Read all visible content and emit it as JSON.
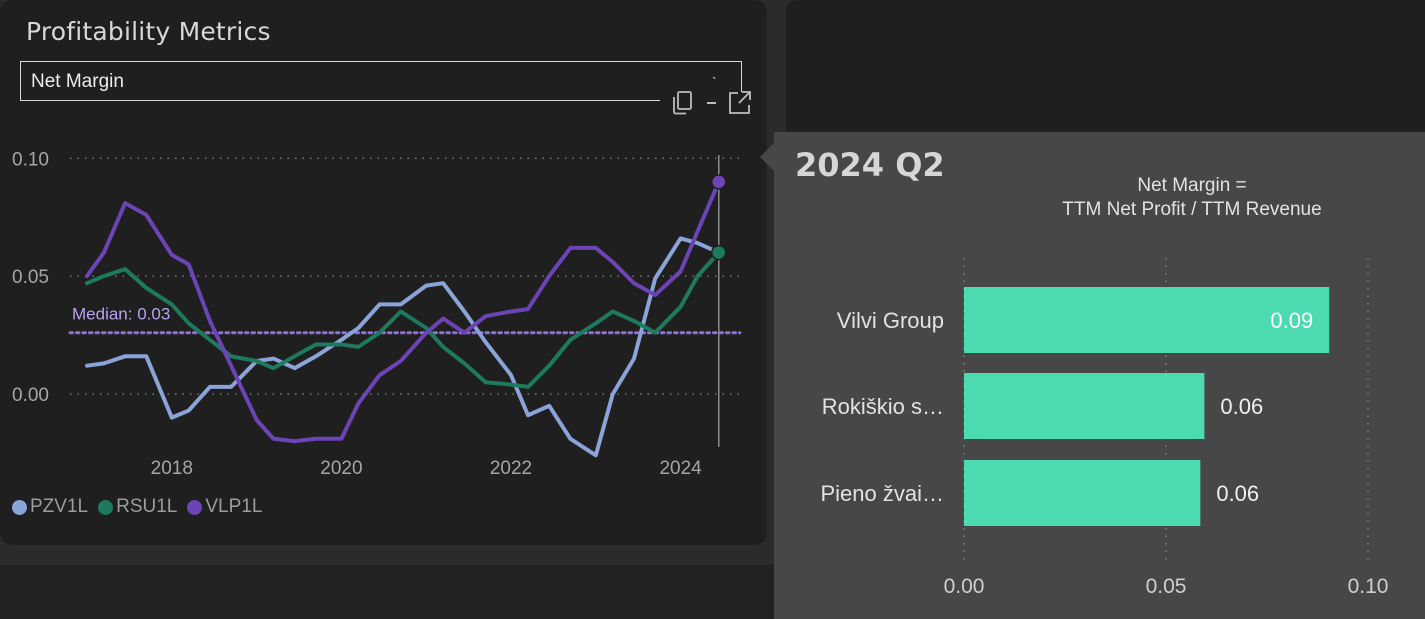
{
  "panel": {
    "title": "Profitability Metrics",
    "select_value": "Net Margin",
    "copy_icon": "copy-icon",
    "expand_icon": "expand-icon"
  },
  "chart_data": [
    {
      "type": "line",
      "title": "Net Margin",
      "x_ticks": [
        "2018",
        "2020",
        "2022",
        "2024"
      ],
      "y_ticks": [
        "0.00",
        "0.05",
        "0.10"
      ],
      "ylim": [
        -0.028,
        0.112
      ],
      "xlim": [
        2016.8,
        2024.7
      ],
      "grid": true,
      "legend_position": "bottom-left",
      "median": {
        "label": "Median: 0.03",
        "value": 0.026
      },
      "series": [
        {
          "name": "PZV1L",
          "color": "#8aa4d8",
          "x": [
            2017.0,
            2017.2,
            2017.45,
            2017.7,
            2018.0,
            2018.2,
            2018.45,
            2018.7,
            2019.0,
            2019.2,
            2019.45,
            2019.7,
            2020.0,
            2020.2,
            2020.45,
            2020.7,
            2021.0,
            2021.2,
            2021.45,
            2021.7,
            2022.0,
            2022.2,
            2022.45,
            2022.7,
            2023.0,
            2023.2,
            2023.45,
            2023.7,
            2024.0,
            2024.2,
            2024.45
          ],
          "y": [
            0.012,
            0.013,
            0.016,
            0.016,
            -0.01,
            -0.007,
            0.003,
            0.003,
            0.014,
            0.015,
            0.011,
            0.016,
            0.023,
            0.028,
            0.038,
            0.038,
            0.046,
            0.047,
            0.035,
            0.022,
            0.008,
            -0.009,
            -0.005,
            -0.019,
            -0.026,
            0.0,
            0.015,
            0.049,
            0.066,
            0.064,
            0.06
          ]
        },
        {
          "name": "RSU1L",
          "color": "#1e7a5e",
          "x": [
            2017.0,
            2017.2,
            2017.45,
            2017.7,
            2018.0,
            2018.2,
            2018.45,
            2018.7,
            2019.0,
            2019.2,
            2019.45,
            2019.7,
            2020.0,
            2020.2,
            2020.45,
            2020.7,
            2021.0,
            2021.2,
            2021.45,
            2021.7,
            2022.0,
            2022.2,
            2022.45,
            2022.7,
            2023.0,
            2023.2,
            2023.45,
            2023.7,
            2024.0,
            2024.2,
            2024.45
          ],
          "y": [
            0.047,
            0.05,
            0.053,
            0.045,
            0.038,
            0.03,
            0.023,
            0.016,
            0.014,
            0.011,
            0.016,
            0.021,
            0.021,
            0.02,
            0.026,
            0.035,
            0.028,
            0.02,
            0.013,
            0.005,
            0.004,
            0.003,
            0.012,
            0.023,
            0.03,
            0.035,
            0.031,
            0.026,
            0.037,
            0.05,
            0.06
          ]
        },
        {
          "name": "VLP1L",
          "color": "#6d44b6",
          "x": [
            2017.0,
            2017.2,
            2017.45,
            2017.7,
            2018.0,
            2018.2,
            2018.45,
            2018.7,
            2019.0,
            2019.2,
            2019.45,
            2019.7,
            2020.0,
            2020.2,
            2020.45,
            2020.7,
            2021.0,
            2021.2,
            2021.45,
            2021.7,
            2022.0,
            2022.2,
            2022.45,
            2022.7,
            2023.0,
            2023.2,
            2023.45,
            2023.7,
            2024.0,
            2024.2,
            2024.45
          ],
          "y": [
            0.05,
            0.06,
            0.081,
            0.076,
            0.059,
            0.055,
            0.031,
            0.012,
            -0.011,
            -0.019,
            -0.02,
            -0.019,
            -0.019,
            -0.004,
            0.008,
            0.014,
            0.026,
            0.032,
            0.026,
            0.033,
            0.035,
            0.036,
            0.05,
            0.062,
            0.062,
            0.056,
            0.047,
            0.042,
            0.052,
            0.069,
            0.09
          ]
        }
      ],
      "hover_x": 2024.45
    },
    {
      "type": "bar",
      "orientation": "horizontal",
      "title": "2024 Q2",
      "subtitle": [
        "Net Margin =",
        "TTM Net Profit / TTM Revenue"
      ],
      "categories": [
        "Vilvi Group",
        "Rokiškio s…",
        "Pieno žvai…"
      ],
      "values": [
        0.09,
        0.06,
        0.06
      ],
      "raw_values": [
        0.0904,
        0.0595,
        0.0585
      ],
      "value_labels": [
        "0.09",
        "0.06",
        "0.06"
      ],
      "x_ticks": [
        "0.00",
        "0.05",
        "0.10"
      ],
      "xlim": [
        0,
        0.1
      ],
      "bar_color": "#4cdbb0"
    }
  ]
}
